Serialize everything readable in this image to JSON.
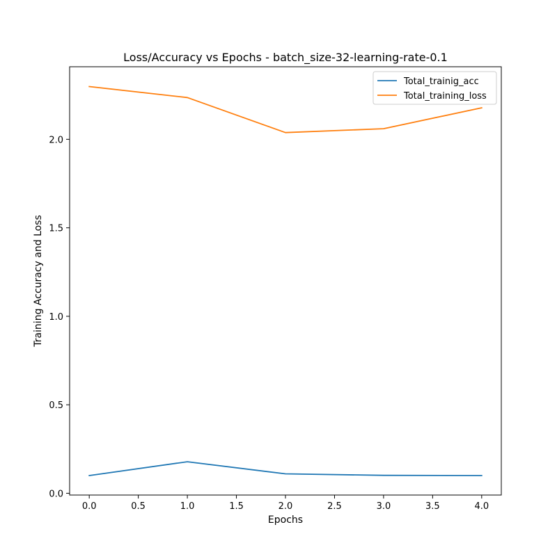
{
  "chart_data": {
    "type": "line",
    "title": "Loss/Accuracy vs Epochs - batch_size-32-learning-rate-0.1",
    "xlabel": "Epochs",
    "ylabel": "Training Accuracy and Loss",
    "x": [
      0,
      1,
      2,
      3,
      4
    ],
    "xlim": [
      -0.2,
      4.2
    ],
    "ylim": [
      -0.01,
      2.41
    ],
    "xticks": [
      0.0,
      0.5,
      1.0,
      1.5,
      2.0,
      2.5,
      3.0,
      3.5,
      4.0
    ],
    "xtick_labels": [
      "0.0",
      "0.5",
      "1.0",
      "1.5",
      "2.0",
      "2.5",
      "3.0",
      "3.5",
      "4.0"
    ],
    "yticks": [
      0.0,
      0.5,
      1.0,
      1.5,
      2.0
    ],
    "ytick_labels": [
      "0.0",
      "0.5",
      "1.0",
      "1.5",
      "2.0"
    ],
    "grid": false,
    "legend": "top-right",
    "series": [
      {
        "name": "Total_trainig_acc",
        "color": "#1f77b4",
        "values": [
          0.1,
          0.178,
          0.11,
          0.101,
          0.1
        ]
      },
      {
        "name": "Total_training_loss",
        "color": "#ff7f0e",
        "values": [
          2.298,
          2.236,
          2.038,
          2.06,
          2.178
        ]
      }
    ]
  }
}
